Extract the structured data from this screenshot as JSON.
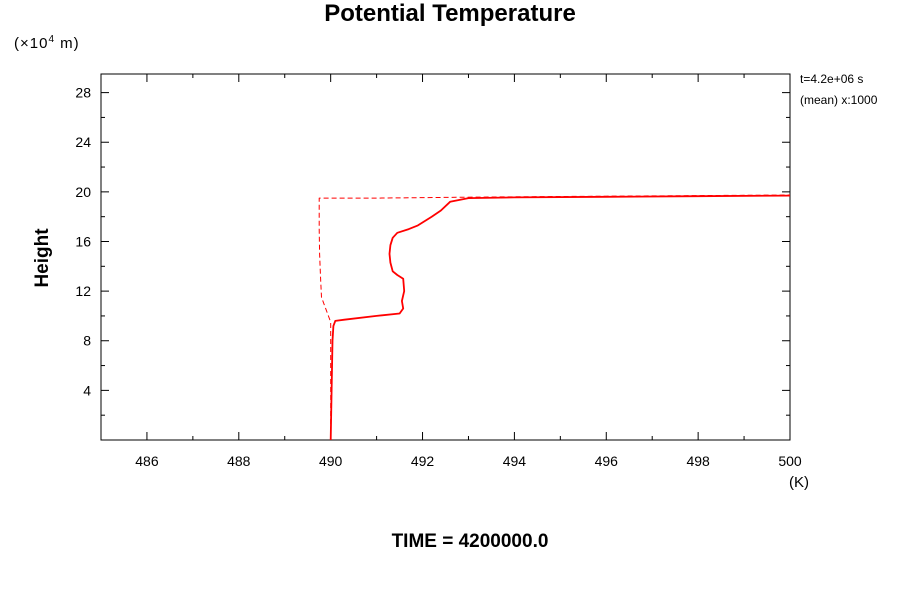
{
  "chart_data": {
    "type": "line",
    "title": "Potential Temperature",
    "ylabel": "Height",
    "yunit_prefix": "(×10",
    "yunit_exp": "4",
    "yunit_suffix": " m)",
    "xunit": "(K)",
    "xlim": [
      485,
      500
    ],
    "ylim": [
      0,
      29.5
    ],
    "x_ticks": [
      486,
      488,
      490,
      492,
      494,
      496,
      498,
      500
    ],
    "x_tick_labels": [
      "486",
      "488",
      "490",
      "492",
      "494",
      "496",
      "498",
      "500"
    ],
    "y_ticks": [
      4,
      8,
      12,
      16,
      20,
      24,
      28
    ],
    "y_tick_labels": [
      "4",
      "8",
      "12",
      "16",
      "20",
      "24",
      "28"
    ],
    "grid": false,
    "annotations": [
      "t=4.2e+06 s",
      "(mean) x:1000"
    ],
    "footer": "TIME = 4200000.0",
    "series": [
      {
        "style": "solid",
        "color": "#ff0000",
        "points": [
          [
            490.0,
            0.0
          ],
          [
            490.02,
            4.0
          ],
          [
            490.04,
            8.0
          ],
          [
            490.06,
            9.2
          ],
          [
            490.1,
            9.6
          ],
          [
            490.3,
            9.7
          ],
          [
            491.0,
            10.0
          ],
          [
            491.5,
            10.2
          ],
          [
            491.58,
            10.6
          ],
          [
            491.55,
            11.2
          ],
          [
            491.6,
            12.0
          ],
          [
            491.58,
            13.0
          ],
          [
            491.45,
            13.3
          ],
          [
            491.35,
            13.6
          ],
          [
            491.3,
            14.3
          ],
          [
            491.28,
            15.0
          ],
          [
            491.3,
            15.7
          ],
          [
            491.35,
            16.3
          ],
          [
            491.45,
            16.7
          ],
          [
            491.7,
            17.0
          ],
          [
            491.9,
            17.3
          ],
          [
            492.2,
            18.0
          ],
          [
            492.4,
            18.5
          ],
          [
            492.6,
            19.2
          ],
          [
            493.0,
            19.5
          ],
          [
            494.0,
            19.55
          ],
          [
            496.0,
            19.6
          ],
          [
            498.0,
            19.65
          ],
          [
            500.0,
            19.7
          ]
        ]
      },
      {
        "style": "dashed",
        "color": "#ff0000",
        "points": [
          [
            490.0,
            0.0
          ],
          [
            490.0,
            8.0
          ],
          [
            490.0,
            9.5
          ],
          [
            489.9,
            10.5
          ],
          [
            489.8,
            11.5
          ],
          [
            489.78,
            13.0
          ],
          [
            489.76,
            15.0
          ],
          [
            489.75,
            17.0
          ],
          [
            489.75,
            19.5
          ],
          [
            491.0,
            19.5
          ],
          [
            492.5,
            19.55
          ],
          [
            494.0,
            19.6
          ],
          [
            496.0,
            19.65
          ],
          [
            498.0,
            19.7
          ],
          [
            500.0,
            19.75
          ]
        ]
      }
    ]
  }
}
